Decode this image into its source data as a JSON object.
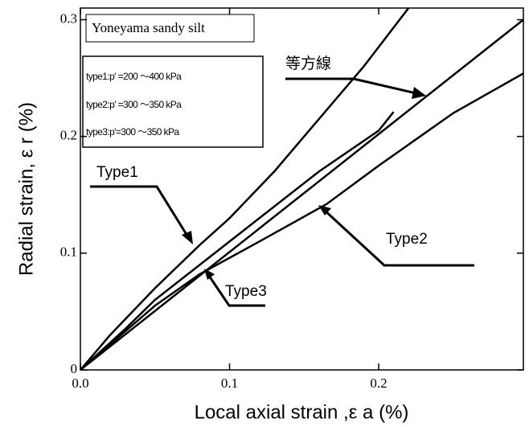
{
  "chart_data": {
    "type": "line",
    "title": "Yoneyama sandy silt",
    "x_label": "Local axial strain ,ε a (%)",
    "y_label": "Radial strain, ε r (%)",
    "legend_lines": [
      "type1:p' =200 ～400 kPa",
      "type2:p' =300 ～350 kPa",
      "type3:p'=300 ～350 kPa"
    ],
    "series": [
      {
        "name": "Type1",
        "color": "#000000",
        "x": [
          0,
          0.02,
          0.05,
          0.08,
          0.1,
          0.13,
          0.16,
          0.19,
          0.22
        ],
        "values": [
          0,
          0.03,
          0.07,
          0.107,
          0.13,
          0.17,
          0.215,
          0.26,
          0.31
        ]
      },
      {
        "name": "Type2",
        "color": "#000000",
        "x": [
          0,
          0.05,
          0.08,
          0.12,
          0.165,
          0.2,
          0.25,
          0.297
        ],
        "values": [
          0,
          0.055,
          0.082,
          0.11,
          0.142,
          0.175,
          0.22,
          0.254
        ]
      },
      {
        "name": "Type3",
        "color": "#000000",
        "x": [
          0,
          0.03,
          0.05,
          0.08,
          0.12,
          0.16,
          0.2,
          0.21
        ],
        "values": [
          0,
          0.035,
          0.06,
          0.09,
          0.13,
          0.17,
          0.205,
          0.221
        ]
      },
      {
        "name": "等方線",
        "color": "#000000",
        "x": [
          0,
          0.297
        ],
        "values": [
          0,
          0.3
        ]
      }
    ],
    "xlim": [
      0,
      0.297
    ],
    "ylim": [
      0,
      0.31
    ],
    "xticks": [
      {
        "value": 0,
        "label": "0.0"
      },
      0.1,
      0.2
    ],
    "yticks": [
      0,
      0.1,
      0.2,
      0.3
    ]
  }
}
